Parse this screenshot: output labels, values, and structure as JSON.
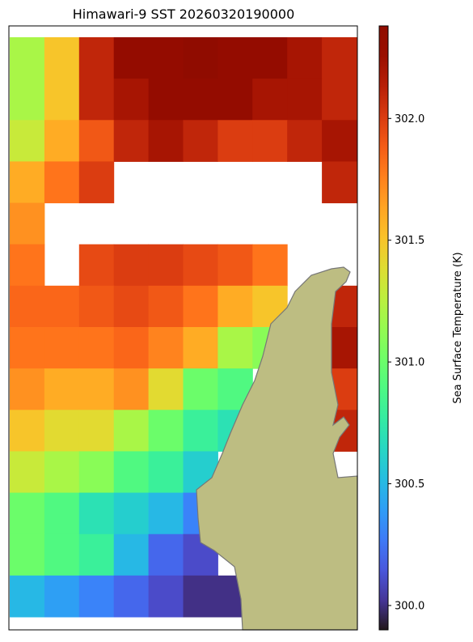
{
  "chart_data": {
    "type": "heatmap",
    "title": "Himawari-9 SST 20260320190000",
    "colorbar_label": "Sea Surface Temperature (K)",
    "colormap": "turbo",
    "clim": [
      299.9,
      302.38
    ],
    "cticks": [
      {
        "value": 300,
        "label": "300.0"
      },
      300.5,
      {
        "value": 301,
        "label": "301.0"
      },
      301.5,
      {
        "value": 302,
        "label": "302.0"
      }
    ],
    "land_color": "#bdbd82",
    "values": [
      [
        301.2,
        301.5,
        302.1,
        302.3,
        302.3,
        302.35,
        302.3,
        302.3,
        302.2,
        302.1
      ],
      [
        301.2,
        301.5,
        302.1,
        302.2,
        302.3,
        302.3,
        302.3,
        302.2,
        302.2,
        302.1
      ],
      [
        301.3,
        301.6,
        301.9,
        302.1,
        302.2,
        302.1,
        302.0,
        302.0,
        302.1,
        302.2
      ],
      [
        301.6,
        301.8,
        302.0,
        null,
        null,
        null,
        null,
        null,
        null,
        302.1
      ],
      [
        301.7,
        null,
        null,
        null,
        null,
        null,
        null,
        null,
        null,
        null
      ],
      [
        301.8,
        null,
        301.95,
        302.0,
        302.0,
        301.95,
        301.9,
        301.8,
        null,
        null
      ],
      [
        301.85,
        301.85,
        301.9,
        301.95,
        301.9,
        301.8,
        301.6,
        301.5,
        null,
        302.1
      ],
      [
        301.8,
        301.8,
        301.8,
        301.85,
        301.75,
        301.6,
        301.2,
        301.1,
        null,
        302.2
      ],
      [
        301.7,
        301.6,
        301.6,
        301.7,
        301.4,
        301.0,
        300.9,
        null,
        null,
        302.0
      ],
      [
        301.5,
        301.4,
        301.4,
        301.2,
        301.0,
        300.8,
        300.7,
        null,
        null,
        302.1
      ],
      [
        301.3,
        301.2,
        301.1,
        300.9,
        300.8,
        300.6,
        null,
        null,
        null,
        null
      ],
      [
        301.0,
        300.9,
        300.7,
        300.6,
        300.5,
        300.3,
        null,
        null,
        null,
        null
      ],
      [
        301.0,
        300.9,
        300.8,
        300.5,
        300.2,
        300.1,
        null,
        null,
        null,
        null
      ],
      [
        300.5,
        300.4,
        300.3,
        300.2,
        300.1,
        300.0,
        300.0,
        null,
        null,
        null
      ]
    ]
  }
}
